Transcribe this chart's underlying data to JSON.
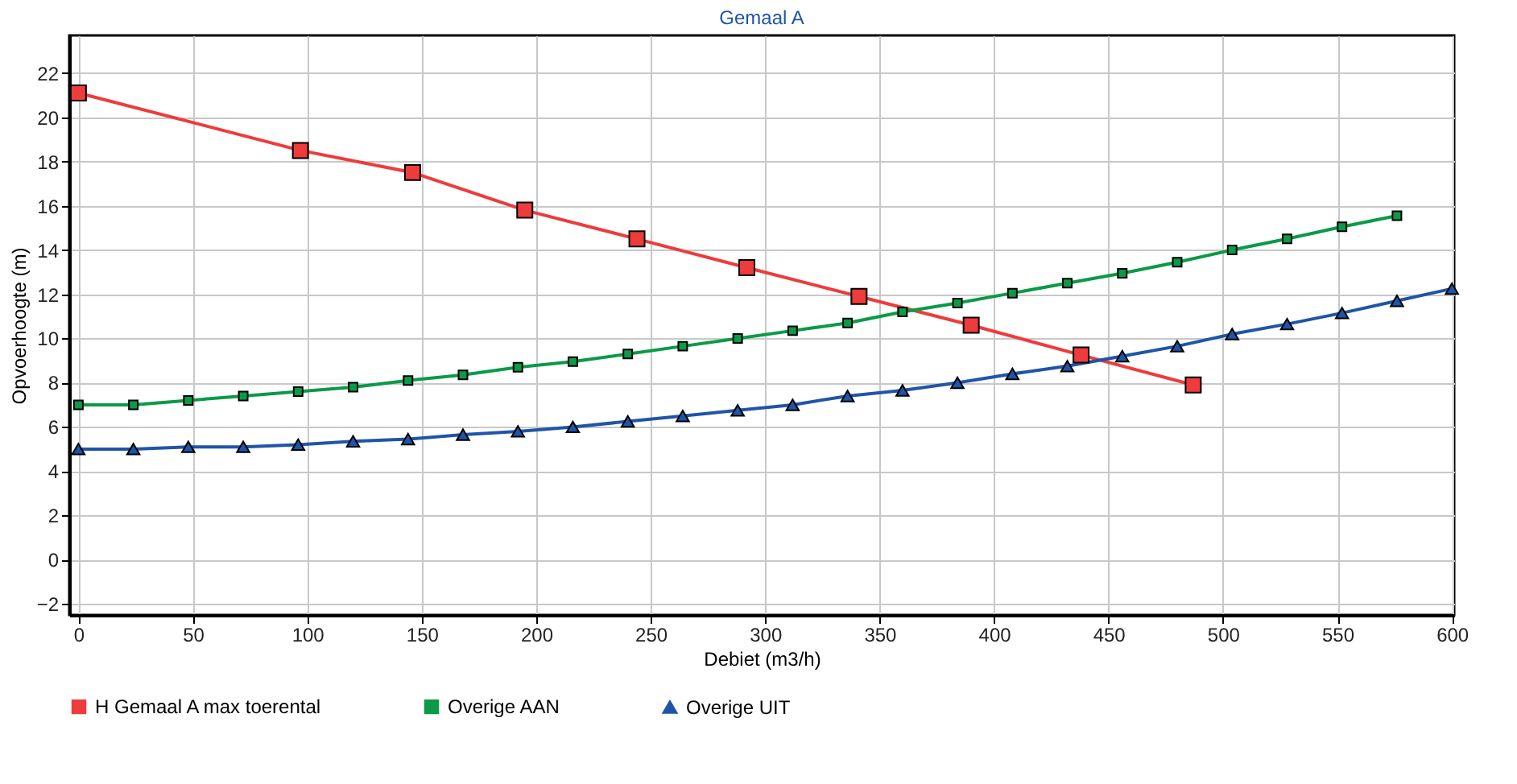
{
  "chart_data": {
    "type": "line",
    "title": "Gemaal A",
    "xlabel": "Debiet (m3/h)",
    "ylabel": "Opvoerhoogte (m)",
    "xlim": [
      -4,
      601
    ],
    "ylim": [
      -2.5,
      23.7
    ],
    "xticks": [
      0,
      50,
      100,
      150,
      200,
      250,
      300,
      350,
      400,
      450,
      500,
      550,
      600
    ],
    "yticks": [
      -2,
      0,
      2,
      4,
      6,
      8,
      10,
      12,
      14,
      16,
      18,
      20,
      22
    ],
    "grid": true,
    "legend": "bottom",
    "line_style": "solid",
    "series": [
      {
        "name": "H Gemaal A max toerental",
        "color": "#ee3b3b",
        "marker": "square",
        "x": [
          0,
          97,
          146,
          195,
          244,
          292,
          341,
          390,
          438,
          487
        ],
        "values": [
          21.1,
          18.5,
          17.5,
          15.8,
          14.5,
          13.2,
          11.9,
          10.6,
          9.25,
          7.9
        ]
      },
      {
        "name": "Overige AAN",
        "color": "#0a9a48",
        "marker": "square",
        "x": [
          0,
          24,
          48,
          72,
          96,
          120,
          144,
          168,
          192,
          216,
          240,
          264,
          288,
          312,
          336,
          360,
          384,
          408,
          432,
          456,
          480,
          504,
          528,
          552,
          576
        ],
        "values": [
          7.0,
          7.0,
          7.2,
          7.4,
          7.6,
          7.8,
          8.1,
          8.35,
          8.7,
          8.95,
          9.3,
          9.65,
          10.0,
          10.35,
          10.7,
          11.2,
          11.6,
          12.05,
          12.5,
          12.95,
          13.45,
          14.0,
          14.5,
          15.05,
          15.55
        ]
      },
      {
        "name": "Overige UIT",
        "color": "#1f55a8",
        "marker": "triangle",
        "x": [
          0,
          24,
          48,
          72,
          96,
          120,
          144,
          168,
          192,
          216,
          240,
          264,
          288,
          312,
          336,
          360,
          384,
          408,
          432,
          456,
          480,
          504,
          528,
          552,
          576,
          600
        ],
        "values": [
          5.0,
          5.0,
          5.1,
          5.1,
          5.2,
          5.35,
          5.45,
          5.65,
          5.8,
          6.0,
          6.25,
          6.5,
          6.75,
          7.0,
          7.4,
          7.65,
          8.0,
          8.4,
          8.75,
          9.2,
          9.65,
          10.2,
          10.65,
          11.15,
          11.7,
          12.25
        ]
      }
    ]
  }
}
